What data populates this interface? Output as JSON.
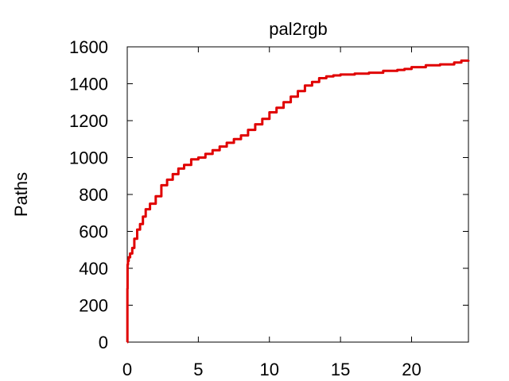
{
  "chart_data": {
    "type": "line",
    "title": "pal2rgb",
    "xlabel": "",
    "ylabel": "Paths",
    "xlim": [
      0,
      24
    ],
    "ylim": [
      0,
      1600
    ],
    "xticks": [
      0,
      5,
      10,
      15,
      20
    ],
    "yticks": [
      0,
      200,
      400,
      600,
      800,
      1000,
      1200,
      1400,
      1600
    ],
    "grid": false,
    "legend": "none",
    "series": [
      {
        "color": "#e00000",
        "x": [
          0,
          0.01,
          0.02,
          0.05,
          0.1,
          0.2,
          0.35,
          0.5,
          0.7,
          0.9,
          1.1,
          1.3,
          1.6,
          2.0,
          2.4,
          2.8,
          3.2,
          3.6,
          4.0,
          4.5,
          5.0,
          5.5,
          6.0,
          6.5,
          7.0,
          7.5,
          8.0,
          8.5,
          9.0,
          9.5,
          10.0,
          10.5,
          11.0,
          11.5,
          12.0,
          12.5,
          13.0,
          13.5,
          14.0,
          14.5,
          15.0,
          16.0,
          17.0,
          18.0,
          19.0,
          19.5,
          20.0,
          21.0,
          22.0,
          23.0,
          23.5,
          24.0
        ],
        "y": [
          0,
          290,
          420,
          440,
          460,
          480,
          510,
          560,
          610,
          640,
          680,
          720,
          750,
          790,
          850,
          880,
          910,
          940,
          960,
          990,
          1000,
          1020,
          1040,
          1060,
          1080,
          1100,
          1120,
          1150,
          1180,
          1210,
          1245,
          1270,
          1300,
          1330,
          1360,
          1390,
          1410,
          1430,
          1440,
          1445,
          1450,
          1455,
          1460,
          1470,
          1475,
          1480,
          1490,
          1500,
          1505,
          1515,
          1525,
          1528
        ]
      }
    ]
  }
}
